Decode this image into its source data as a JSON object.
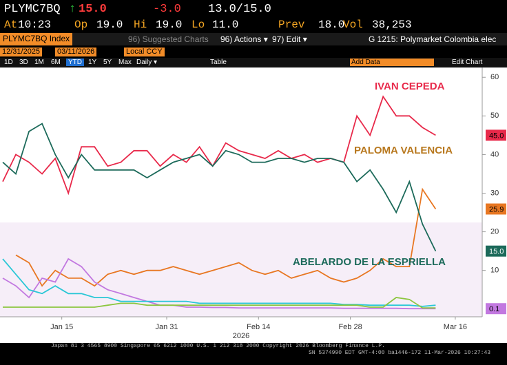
{
  "header": {
    "ticker": "PLYMC7BQ",
    "arrow": "↑",
    "last": "15.0",
    "change": "-3.0",
    "bid_ask": "13.0/15.0",
    "stats": [
      {
        "label": "At",
        "value": "10:23"
      },
      {
        "label": "Op",
        "value": "19.0"
      },
      {
        "label": "Hi",
        "value": "19.0"
      },
      {
        "label": "Lo",
        "value": "11.0"
      },
      {
        "label": "Prev",
        "value": "18.0"
      },
      {
        "label": "Vol",
        "value": "38,253"
      }
    ]
  },
  "toolbar": {
    "security": "PLYMC7BQ Index",
    "suggested": "96) Suggested Charts",
    "actions": "96) Actions ▾",
    "edit": "97) Edit ▾",
    "page": "G 1215: Polymarket Colombia elec",
    "start_date": "12/31/2025",
    "end_date": "03/11/2026",
    "currency": "Local CCY",
    "ranges": [
      "1D",
      "3D",
      "1M",
      "6M",
      "YTD",
      "1Y",
      "5Y",
      "Max"
    ],
    "active_range": 4,
    "frequency": "Daily ▾",
    "table": "Table",
    "add_data": "Add Data",
    "edit_chart": "Edit Chart"
  },
  "chart_data": {
    "type": "line",
    "xlabel": "2026",
    "x": [
      "2026-01-06",
      "2026-01-08",
      "2026-01-10",
      "2026-01-12",
      "2026-01-14",
      "2026-01-16",
      "2026-01-18",
      "2026-01-20",
      "2026-01-22",
      "2026-01-24",
      "2026-01-26",
      "2026-01-28",
      "2026-01-30",
      "2026-02-01",
      "2026-02-03",
      "2026-02-05",
      "2026-02-07",
      "2026-02-09",
      "2026-02-11",
      "2026-02-13",
      "2026-02-15",
      "2026-02-17",
      "2026-02-19",
      "2026-02-21",
      "2026-02-23",
      "2026-02-25",
      "2026-02-27",
      "2026-03-01",
      "2026-03-03",
      "2026-03-05",
      "2026-03-07",
      "2026-03-09",
      "2026-03-11",
      "2026-03-13"
    ],
    "xlim": [
      "2026-01-06",
      "2026-03-20"
    ],
    "xticks": [
      {
        "value": "2026-01-15",
        "label": "Jan 15"
      },
      {
        "value": "2026-01-31",
        "label": "Jan 31"
      },
      {
        "value": "2026-02-14",
        "label": "Feb 14"
      },
      {
        "value": "2026-02-28",
        "label": "Feb 28"
      },
      {
        "value": "2026-03-16",
        "label": "Mar 16"
      }
    ],
    "ylim": [
      -2,
      62
    ],
    "yticks": [
      10,
      20,
      30,
      40,
      50,
      60
    ],
    "grid": false,
    "series": [
      {
        "name": "IVAN CEPEDA",
        "color": "#e8294a",
        "last_label": "45.0",
        "values": [
          33,
          40,
          38,
          35,
          39,
          30,
          42,
          42,
          37,
          38,
          41,
          41,
          37,
          40,
          38,
          42,
          37,
          43,
          41,
          40,
          39,
          41,
          39,
          40,
          38,
          39,
          38,
          50,
          45,
          55,
          50,
          50,
          47,
          45
        ]
      },
      {
        "name": "PALOMA VALENCIA",
        "color": "#e87722",
        "last_label": "25.9",
        "values": [
          null,
          14,
          12,
          6,
          10,
          8,
          8,
          6,
          9,
          10,
          9,
          10,
          10,
          11,
          10,
          9,
          10,
          11,
          12,
          10,
          9,
          10,
          8,
          9,
          10,
          8,
          7,
          8,
          10,
          13,
          11,
          11,
          31,
          25.9
        ]
      },
      {
        "name": "ABELARDO DE LA ESPRIELLA",
        "color": "#1c6a5a",
        "last_label": "15.0",
        "values": [
          38,
          35,
          46,
          48,
          40,
          34,
          40,
          36,
          36,
          36,
          36,
          34,
          36,
          38,
          39,
          40,
          37,
          41,
          40,
          38,
          38,
          39,
          39,
          38,
          39,
          39,
          38,
          33,
          36,
          31,
          25,
          33,
          22,
          15
        ]
      },
      {
        "color": "#c278e0",
        "last_label": "0.1",
        "values": [
          8,
          6,
          3,
          8,
          7,
          13,
          11,
          7,
          5,
          4,
          3,
          2,
          1,
          1,
          0.5,
          0.5,
          0.4,
          0.4,
          0.3,
          0.3,
          0.3,
          0.3,
          0.3,
          0.3,
          0.3,
          0.3,
          0.2,
          0.2,
          0.2,
          0.2,
          0.2,
          0.1,
          0.1,
          0.1
        ]
      },
      {
        "color": "#29c7d6",
        "values": [
          13,
          9,
          5,
          4,
          6,
          4,
          4,
          3,
          3,
          2,
          2,
          2,
          2,
          2,
          2,
          1.5,
          1.5,
          1.5,
          1.5,
          1.5,
          1.5,
          1.5,
          1.5,
          1.5,
          1.5,
          1.5,
          1.2,
          1.2,
          1,
          1,
          1,
          1,
          0.7,
          1
        ]
      },
      {
        "color": "#8cc63f",
        "values": [
          0.5,
          0.5,
          0.5,
          0.5,
          0.5,
          0.5,
          0.5,
          0.5,
          1,
          1.5,
          1.5,
          1,
          1,
          1,
          1,
          1,
          1,
          1,
          1,
          1,
          1,
          1,
          1,
          1,
          1,
          1,
          1,
          1,
          0.5,
          0.5,
          3,
          2.5,
          0.3,
          0.3
        ]
      }
    ]
  },
  "footer": {
    "contacts": "Japan 81 3 4565 8900   Singapore 65 6212 1000   U.S. 1 212 318 2000   Copyright 2026 Bloomberg Finance L.P.",
    "session": "SN 5374990 EDT  GMT-4:00 ba1446-172 11-Mar-2026 10:27:43"
  }
}
